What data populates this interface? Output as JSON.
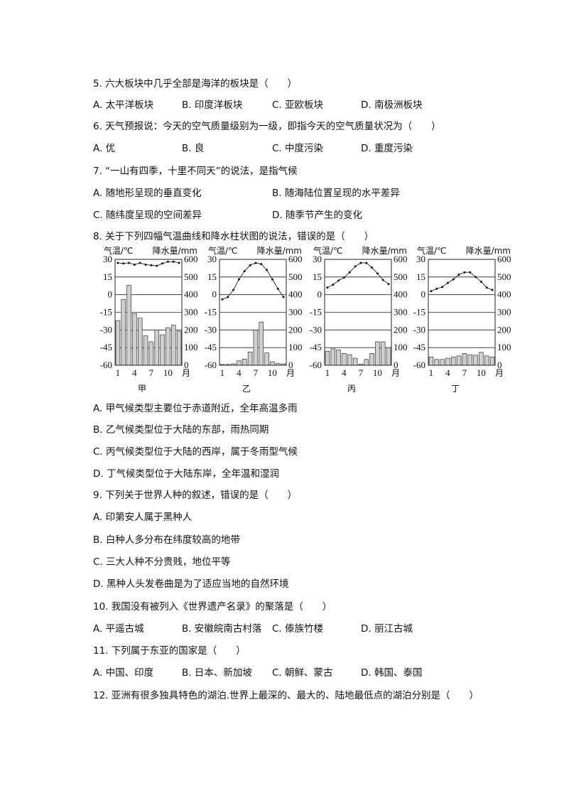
{
  "questions": [
    {
      "stem": "5.  六大板块中几乎全部是海洋的板块是（　　）",
      "options": [
        "A. 太平洋板块",
        "B. 印度洋板块",
        "C. 亚欧板块",
        "D. 南极洲板块"
      ]
    },
    {
      "stem": "6.  天气预报说：今天的空气质量级别为一级，即指今天的空气质量状况为（　　）",
      "options": [
        "A. 优",
        "B. 良",
        "C. 中度污染",
        "D. 重度污染"
      ]
    },
    {
      "stem": "7.  “一山有四季，十里不同天”的说法，是指气候",
      "options": [
        "A. 随地形呈现的垂直变化",
        "B. 随海陆位置呈现的水平差异",
        "C. 随纬度呈现的空间差异",
        "D. 随季节产生的变化"
      ]
    },
    {
      "stem": "8.  关于下列四幅气温曲线和降水柱状图的说法，错误的是（　　）",
      "options": [
        "A. 甲气候类型主要位于赤道附近，全年高温多雨",
        "B. 乙气候类型位于大陆的东部，雨热同期",
        "C. 丙气候类型位于大陆的西岸，属于冬雨型气候",
        "D. 丁气候类型位于大陆东岸，全年温和湿润"
      ]
    },
    {
      "stem": "9.  下列关于世界人种的叙述，错误的是（　　）",
      "options": [
        "A. 印第安人属于黑种人",
        "B. 白种人多分布在纬度较高的地带",
        "C. 三大人种不分贵贱，地位平等",
        "D. 黑种人头发卷曲是为了适应当地的自然环境"
      ]
    },
    {
      "stem": "10.  我国没有被列入《世界遗产名录》的聚落是（　　）",
      "options": [
        "A. 平遥古城",
        "B. 安徽皖南古村落",
        "C. 傣族竹楼",
        "D. 丽江古城"
      ]
    },
    {
      "stem": "11.  下列属于东亚的国家是（　　）",
      "options": [
        "A. 中国、印度",
        "B. 日本、新加坡",
        "C. 朝鲜、蒙古",
        "D. 韩国、泰国"
      ]
    },
    {
      "stem": "12.  亚洲有很多独具特色的湖泊.世界上最深的、最大的、陆地最低点的湖泊分别是（　　）",
      "options": []
    }
  ],
  "chart_data": [
    {
      "type": "bar+line",
      "title": "甲",
      "ylabel_left": "气温/℃",
      "ylabel_right": "降水量/mm",
      "xlabel": "月",
      "x_ticks": [
        "1",
        "4",
        "7",
        "10"
      ],
      "y_left_ticks": [
        30,
        15,
        0,
        -15,
        -30,
        -45,
        -60
      ],
      "y_right_ticks": [
        600,
        500,
        400,
        300,
        200,
        100,
        0
      ],
      "ylim_left": [
        -60,
        30
      ],
      "ylim_right": [
        0,
        600
      ],
      "grid": true,
      "temperature": [
        27,
        26.5,
        27,
        25.5,
        27,
        25.5,
        25,
        24.5,
        26.5,
        28,
        28,
        27
      ],
      "precipitation": [
        253,
        373,
        453,
        293,
        267,
        167,
        133,
        200,
        173,
        213,
        227,
        193
      ]
    },
    {
      "type": "bar+line",
      "title": "乙",
      "ylabel_left": "气温/℃",
      "ylabel_right": "降水量/mm",
      "xlabel": "月",
      "x_ticks": [
        "1",
        "4",
        "7",
        "10"
      ],
      "y_left_ticks": [
        30,
        15,
        0,
        -15,
        -30,
        -45,
        -60
      ],
      "y_right_ticks": [
        600,
        500,
        400,
        300,
        200,
        100,
        0
      ],
      "ylim_left": [
        -60,
        30
      ],
      "ylim_right": [
        0,
        600
      ],
      "grid": true,
      "temperature": [
        -4,
        -2,
        4,
        13,
        20,
        25,
        27,
        26,
        21,
        13,
        5,
        -2
      ],
      "precipitation": [
        5,
        5,
        8,
        25,
        35,
        75,
        200,
        245,
        70,
        20,
        10,
        8
      ]
    },
    {
      "type": "bar+line",
      "title": "丙",
      "ylabel_left": "气温/℃",
      "ylabel_right": "降水量/mm",
      "xlabel": "月",
      "x_ticks": [
        "1",
        "4",
        "7",
        "10"
      ],
      "y_left_ticks": [
        30,
        15,
        0,
        -15,
        -30,
        -45,
        -60
      ],
      "y_right_ticks": [
        600,
        500,
        400,
        300,
        200,
        100,
        0
      ],
      "ylim_left": [
        -60,
        30
      ],
      "ylim_right": [
        0,
        600
      ],
      "grid": true,
      "temperature": [
        6,
        8.5,
        12,
        14.5,
        19,
        24,
        27,
        27,
        23,
        18,
        12.5,
        9
      ],
      "precipitation": [
        80,
        93,
        87,
        67,
        60,
        40,
        7,
        33,
        67,
        133,
        133,
        100
      ]
    },
    {
      "type": "bar+line",
      "title": "丁",
      "ylabel_left": "气温/℃",
      "ylabel_right": "降水量/mm",
      "xlabel": "月",
      "x_ticks": [
        "1",
        "4",
        "7",
        "10"
      ],
      "y_left_ticks": [
        30,
        15,
        0,
        -15,
        -30,
        -45,
        -60
      ],
      "y_right_ticks": [
        600,
        500,
        400,
        300,
        200,
        100,
        0
      ],
      "ylim_left": [
        -60,
        30
      ],
      "ylim_right": [
        0,
        600
      ],
      "grid": true,
      "temperature": [
        3,
        5,
        6.5,
        10,
        13,
        17,
        19,
        19,
        15,
        11,
        6,
        4
      ],
      "precipitation": [
        47,
        33,
        33,
        40,
        47,
        53,
        67,
        60,
        57,
        73,
        53,
        47
      ]
    }
  ]
}
